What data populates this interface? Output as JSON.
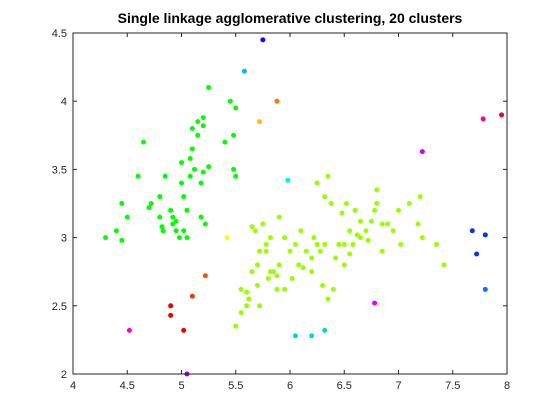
{
  "chart_data": {
    "type": "scatter",
    "title": "Single linkage agglomerative clustering, 20 clusters",
    "xlabel": "",
    "ylabel": "",
    "xlim": [
      4,
      8
    ],
    "ylim": [
      2,
      4.5
    ],
    "xticks": [
      4,
      4.5,
      5,
      5.5,
      6,
      6.5,
      7,
      7.5,
      8
    ],
    "yticks": [
      2,
      2.5,
      3,
      3.5,
      4,
      4.5
    ],
    "xtick_labels": [
      "4",
      "4.5",
      "5",
      "5.5",
      "6",
      "6.5",
      "7",
      "7.5",
      "8"
    ],
    "ytick_labels": [
      "2",
      "2.5",
      "3",
      "3.5",
      "4",
      "4.5"
    ],
    "grid": false,
    "box": true,
    "series": [
      {
        "color": "#00ff00",
        "points": [
          [
            4.3,
            3.0
          ],
          [
            4.4,
            3.05
          ],
          [
            4.45,
            2.98
          ],
          [
            4.45,
            3.25
          ],
          [
            4.5,
            3.15
          ],
          [
            4.6,
            3.45
          ],
          [
            4.65,
            3.7
          ],
          [
            4.7,
            3.22
          ],
          [
            4.72,
            3.25
          ],
          [
            4.8,
            3.15
          ],
          [
            4.8,
            3.3
          ],
          [
            4.82,
            3.08
          ],
          [
            4.83,
            3.05
          ],
          [
            4.85,
            3.45
          ],
          [
            4.9,
            3.2
          ],
          [
            4.92,
            3.15
          ],
          [
            4.92,
            3.1
          ],
          [
            4.95,
            3.12
          ],
          [
            4.95,
            3.05
          ],
          [
            4.98,
            3.0
          ],
          [
            5.0,
            3.55
          ],
          [
            5.0,
            3.4
          ],
          [
            5.02,
            3.05
          ],
          [
            5.02,
            3.3
          ],
          [
            5.05,
            3.2
          ],
          [
            5.05,
            3.0
          ],
          [
            5.08,
            3.45
          ],
          [
            5.08,
            3.58
          ],
          [
            5.1,
            3.65
          ],
          [
            5.1,
            3.8
          ],
          [
            5.12,
            3.5
          ],
          [
            5.15,
            3.75
          ],
          [
            5.15,
            3.85
          ],
          [
            5.18,
            3.4
          ],
          [
            5.18,
            3.15
          ],
          [
            5.2,
            3.48
          ],
          [
            5.2,
            3.82
          ],
          [
            5.2,
            3.88
          ],
          [
            5.22,
            3.1
          ],
          [
            5.25,
            3.52
          ],
          [
            5.25,
            4.1
          ],
          [
            5.4,
            3.7
          ],
          [
            5.45,
            4.0
          ],
          [
            5.48,
            3.75
          ],
          [
            5.48,
            3.5
          ],
          [
            5.5,
            3.45
          ],
          [
            5.5,
            3.95
          ]
        ]
      },
      {
        "color": "#99ff00",
        "points": [
          [
            5.5,
            2.35
          ],
          [
            5.55,
            2.45
          ],
          [
            5.55,
            2.62
          ],
          [
            5.6,
            2.5
          ],
          [
            5.6,
            2.6
          ],
          [
            5.62,
            2.55
          ],
          [
            5.65,
            2.75
          ],
          [
            5.65,
            3.08
          ],
          [
            5.68,
            3.05
          ],
          [
            5.7,
            2.8
          ],
          [
            5.7,
            2.65
          ],
          [
            5.72,
            2.5
          ],
          [
            5.72,
            2.9
          ],
          [
            5.75,
            3.1
          ],
          [
            5.78,
            2.95
          ],
          [
            5.78,
            2.9
          ],
          [
            5.8,
            2.7
          ],
          [
            5.82,
            2.75
          ],
          [
            5.82,
            3.0
          ],
          [
            5.85,
            2.75
          ],
          [
            5.88,
            2.72
          ],
          [
            5.88,
            2.62
          ],
          [
            5.9,
            3.15
          ],
          [
            5.9,
            2.8
          ],
          [
            5.95,
            2.62
          ],
          [
            5.95,
            3.0
          ],
          [
            6.0,
            2.9
          ],
          [
            6.02,
            2.7
          ],
          [
            6.05,
            2.95
          ],
          [
            6.08,
            2.8
          ],
          [
            6.1,
            3.05
          ],
          [
            6.12,
            2.78
          ],
          [
            6.15,
            2.9
          ],
          [
            6.2,
            2.85
          ],
          [
            6.2,
            2.75
          ],
          [
            6.22,
            3.0
          ],
          [
            6.25,
            2.95
          ],
          [
            6.25,
            3.4
          ],
          [
            6.28,
            2.9
          ],
          [
            6.3,
            2.65
          ],
          [
            6.32,
            2.95
          ],
          [
            6.32,
            3.3
          ],
          [
            6.35,
            2.55
          ],
          [
            6.35,
            3.45
          ],
          [
            6.38,
            3.25
          ],
          [
            6.4,
            2.62
          ],
          [
            6.42,
            2.85
          ],
          [
            6.45,
            2.95
          ],
          [
            6.48,
            3.18
          ],
          [
            6.5,
            2.8
          ],
          [
            6.5,
            2.95
          ],
          [
            6.52,
            3.25
          ],
          [
            6.55,
            2.88
          ],
          [
            6.55,
            3.05
          ],
          [
            6.58,
            2.95
          ],
          [
            6.6,
            3.2
          ],
          [
            6.62,
            3.02
          ],
          [
            6.65,
            3.0
          ],
          [
            6.65,
            3.12
          ],
          [
            6.7,
            3.05
          ],
          [
            6.72,
            2.98
          ],
          [
            6.75,
            3.12
          ],
          [
            6.78,
            3.2
          ],
          [
            6.8,
            3.25
          ],
          [
            6.8,
            3.35
          ],
          [
            6.85,
            3.1
          ],
          [
            6.85,
            2.9
          ],
          [
            6.9,
            3.1
          ],
          [
            6.95,
            3.05
          ],
          [
            7.0,
            3.2
          ],
          [
            7.02,
            2.95
          ],
          [
            7.1,
            3.25
          ],
          [
            7.18,
            3.1
          ],
          [
            7.2,
            3.3
          ],
          [
            7.22,
            3.0
          ],
          [
            7.35,
            2.95
          ],
          [
            7.42,
            2.8
          ]
        ]
      },
      {
        "color": "#ffff00",
        "points": [
          [
            5.42,
            3.0
          ]
        ]
      },
      {
        "color": "#ffbb00",
        "points": [
          [
            5.72,
            3.85
          ]
        ]
      },
      {
        "color": "#ff7700",
        "points": [
          [
            5.88,
            4.0
          ]
        ]
      },
      {
        "color": "#ee5500",
        "points": [
          [
            5.22,
            2.72
          ]
        ]
      },
      {
        "color": "#ff3300",
        "points": [
          [
            5.1,
            2.57
          ]
        ]
      },
      {
        "color": "#ee0000",
        "points": [
          [
            4.9,
            2.5
          ],
          [
            4.9,
            2.43
          ],
          [
            5.02,
            2.32
          ]
        ]
      },
      {
        "color": "#ff00cc",
        "points": [
          [
            4.52,
            2.32
          ]
        ]
      },
      {
        "color": "#dd00ff",
        "points": [
          [
            6.78,
            2.52
          ]
        ]
      },
      {
        "color": "#cc00ff",
        "points": [
          [
            7.22,
            3.63
          ]
        ]
      },
      {
        "color": "#ff0088",
        "points": [
          [
            7.78,
            3.87
          ]
        ]
      },
      {
        "color": "#ee0033",
        "points": [
          [
            7.95,
            3.9
          ]
        ]
      },
      {
        "color": "#0033ff",
        "points": [
          [
            7.68,
            3.05
          ],
          [
            7.72,
            2.88
          ],
          [
            7.8,
            3.02
          ]
        ]
      },
      {
        "color": "#0077ff",
        "points": [
          [
            7.8,
            2.62
          ]
        ]
      },
      {
        "color": "#2200ff",
        "points": [
          [
            5.75,
            4.45
          ]
        ]
      },
      {
        "color": "#00bbff",
        "points": [
          [
            5.58,
            4.22
          ]
        ]
      },
      {
        "color": "#00eeff",
        "points": [
          [
            5.98,
            3.42
          ]
        ]
      },
      {
        "color": "#00ddbb",
        "points": [
          [
            6.05,
            2.28
          ],
          [
            6.2,
            2.28
          ],
          [
            6.32,
            2.32
          ]
        ]
      },
      {
        "color": "#8800ff",
        "points": [
          [
            5.05,
            2.0
          ]
        ]
      }
    ]
  }
}
